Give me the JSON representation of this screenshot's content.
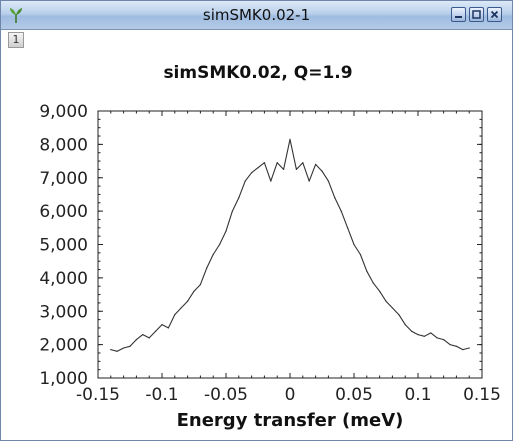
{
  "window": {
    "title": "simSMK0.02-1",
    "buttons": [
      "minimize-icon",
      "maximize-icon",
      "close-icon"
    ]
  },
  "toolbar": {
    "tab_label": "1"
  },
  "chart_data": {
    "type": "line",
    "title": "simSMK0.02, Q=1.9",
    "xlabel": "Energy transfer (meV)",
    "ylabel": "",
    "xlim": [
      -0.15,
      0.15
    ],
    "ylim": [
      1000,
      9000
    ],
    "xticks": [
      "-0.15",
      "-0.1",
      "-0.05",
      "0",
      "0.05",
      "0.1",
      "0.15"
    ],
    "yticks": [
      "1,000",
      "2,000",
      "3,000",
      "4,000",
      "5,000",
      "6,000",
      "7,000",
      "8,000",
      "9,000"
    ],
    "grid": false,
    "series": [
      {
        "color": "#333333",
        "x": [
          -0.14,
          -0.135,
          -0.13,
          -0.125,
          -0.12,
          -0.115,
          -0.11,
          -0.105,
          -0.1,
          -0.095,
          -0.09,
          -0.085,
          -0.08,
          -0.075,
          -0.07,
          -0.065,
          -0.06,
          -0.055,
          -0.05,
          -0.045,
          -0.04,
          -0.035,
          -0.03,
          -0.025,
          -0.02,
          -0.015,
          -0.01,
          -0.005,
          0,
          0.005,
          0.01,
          0.015,
          0.02,
          0.025,
          0.03,
          0.035,
          0.04,
          0.045,
          0.05,
          0.055,
          0.06,
          0.065,
          0.07,
          0.075,
          0.08,
          0.085,
          0.09,
          0.095,
          0.1,
          0.105,
          0.11,
          0.115,
          0.12,
          0.125,
          0.13,
          0.135,
          0.14
        ],
        "values": [
          1850,
          1800,
          1900,
          1950,
          2150,
          2300,
          2200,
          2400,
          2600,
          2500,
          2900,
          3100,
          3300,
          3600,
          3800,
          4300,
          4700,
          5000,
          5400,
          6000,
          6400,
          6900,
          7150,
          7300,
          7450,
          6900,
          7450,
          7250,
          8150,
          7250,
          7450,
          6900,
          7400,
          7200,
          6900,
          6400,
          6000,
          5500,
          5000,
          4700,
          4200,
          3850,
          3600,
          3300,
          3100,
          2900,
          2600,
          2400,
          2300,
          2250,
          2350,
          2200,
          2150,
          2000,
          1950,
          1850,
          1900
        ]
      }
    ]
  }
}
